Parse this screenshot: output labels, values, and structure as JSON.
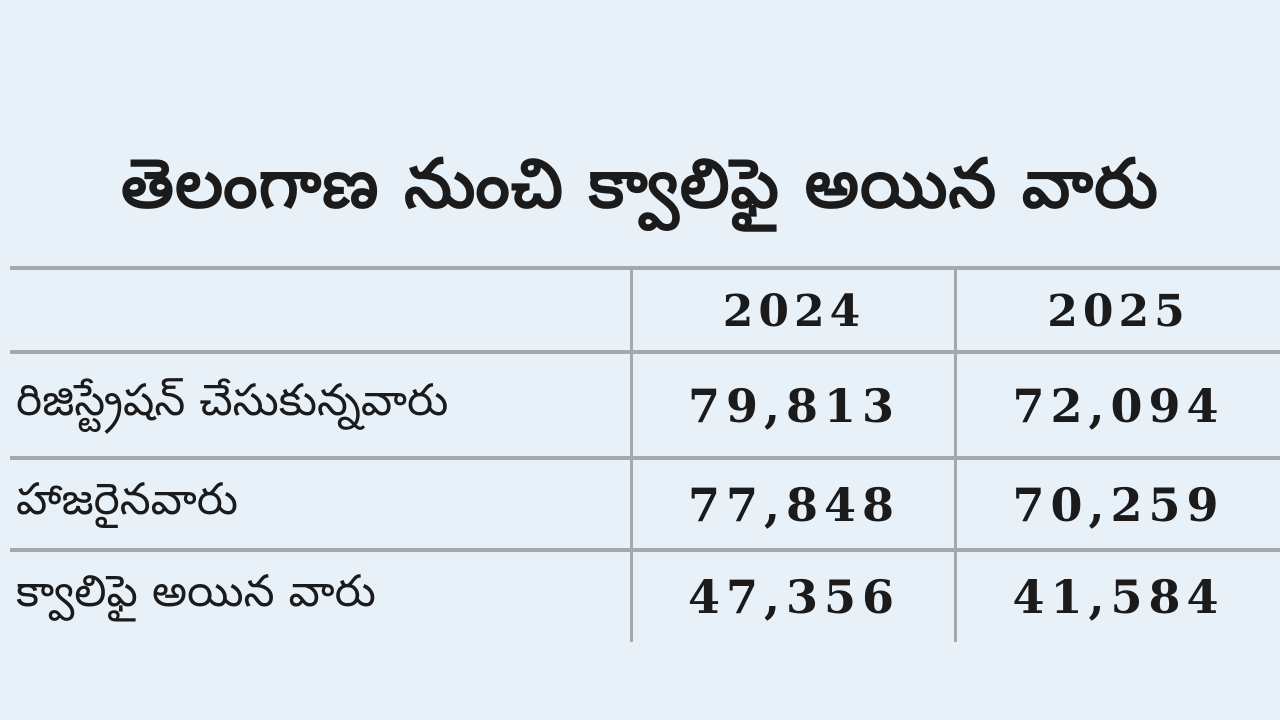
{
  "chart_data": {
    "type": "table",
    "title": "తెలంగాణ నుంచి క్వాలిఫై అయిన వారు",
    "columns": [
      "",
      "2024",
      "2025"
    ],
    "rows": [
      {
        "label": "రిజిస్ట్రేషన్ చేసుకున్నవారు",
        "values": [
          "79,813",
          "72,094"
        ]
      },
      {
        "label": "హాజరైనవారు",
        "values": [
          "77,848",
          "70,259"
        ]
      },
      {
        "label": "క్వాలిఫై అయిన వారు",
        "values": [
          "47,356",
          "41,584"
        ]
      }
    ]
  }
}
